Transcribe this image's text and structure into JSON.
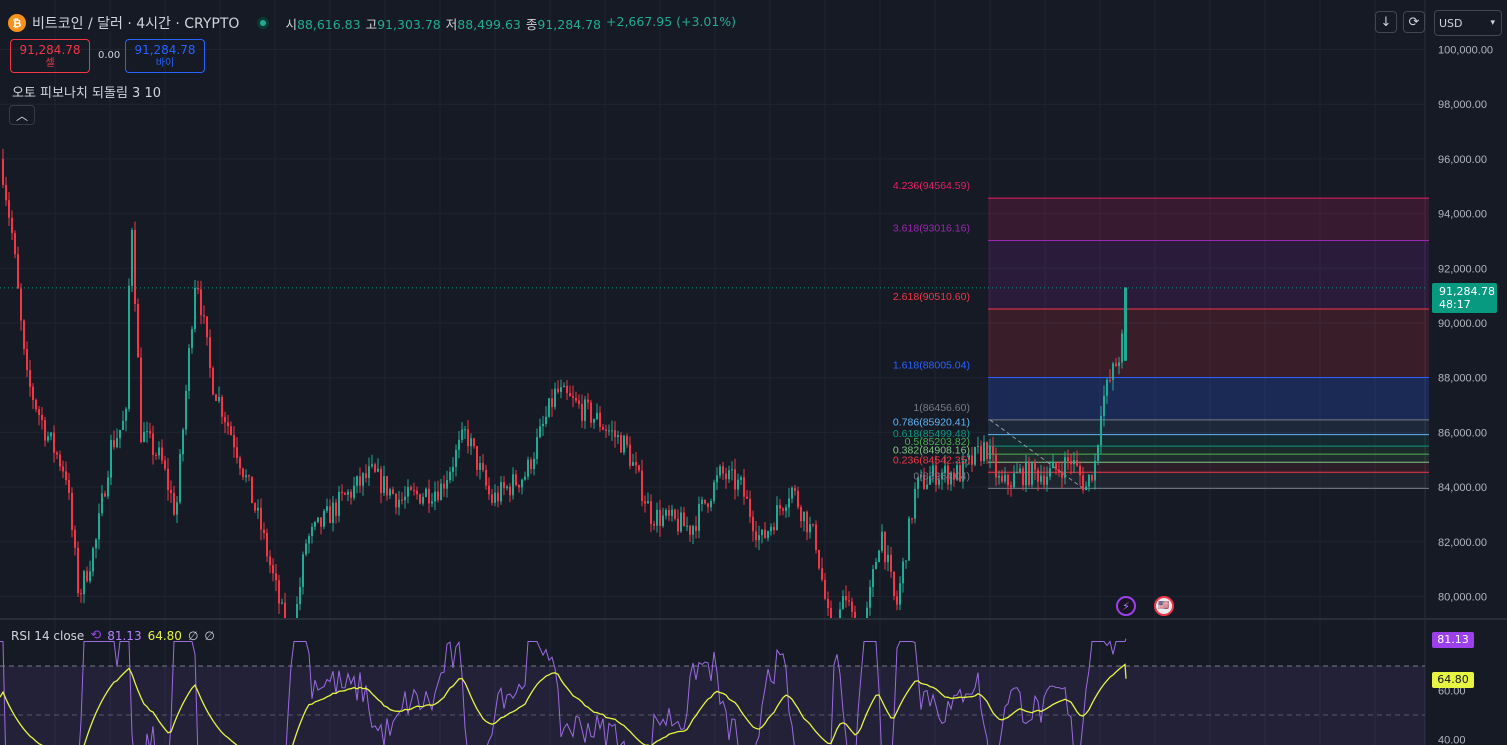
{
  "header": {
    "coin_icon": "bitcoin-icon",
    "title": "비트코인 / 달러 · 4시간 · CRYPTO",
    "open_label": "시",
    "open_value": "88,616.83",
    "high_label": "고",
    "high_value": "91,303.78",
    "low_label": "저",
    "low_value": "88,499.63",
    "close_label": "종",
    "close_value": "91,284.78",
    "change": "+2,667.95 (+3.01%)"
  },
  "trade": {
    "sell_price": "91,284.78",
    "sell_label": "셀",
    "spread": "0.00",
    "buy_price": "91,284.78",
    "buy_label": "바이"
  },
  "indicator": {
    "name": "오토 피보나치 되돌림 3 10",
    "collapse_icon": "chevron-up-icon"
  },
  "toolbar": {
    "download_icon": "arrow-down-icon",
    "refresh_icon": "refresh-icon",
    "currency": "USD"
  },
  "price_axis": {
    "ticks": [
      "100,000.00",
      "98,000.00",
      "96,000.00",
      "94,000.00",
      "92,000.00",
      "90,000.00",
      "88,000.00",
      "86,000.00",
      "84,000.00",
      "82,000.00",
      "80,000.00"
    ],
    "current_price": "91,284.78",
    "countdown": "48:17"
  },
  "fib_levels": [
    {
      "text": "4.236(94564.59)",
      "color": "#e91e63"
    },
    {
      "text": "3.618(93016.16)",
      "color": "#9c27b0"
    },
    {
      "text": "2.618(90510.60)",
      "color": "#f23645"
    },
    {
      "text": "1.618(88005.04)",
      "color": "#2962ff"
    },
    {
      "text": "1(86456.60)",
      "color": "#787b86"
    },
    {
      "text": "0.786(85920.41)",
      "color": "#64b5f6"
    },
    {
      "text": "0.618(85499.48)",
      "color": "#089981"
    },
    {
      "text": "0.5(85203.82)",
      "color": "#4caf50"
    },
    {
      "text": "0.382(84908.16)",
      "color": "#81c784"
    },
    {
      "text": "0.236(84542.35)",
      "color": "#f23645"
    },
    {
      "text": "0(83954.04)",
      "color": "#787b86"
    }
  ],
  "events": {
    "lightning_icon": "lightning-icon",
    "flag_icon": "us-flag-icon"
  },
  "rsi": {
    "label": "RSI 14 close",
    "sync_icon": "sync-icon",
    "value": "81.13",
    "ma_value": "64.80",
    "extra1": "∅",
    "extra2": "∅",
    "tag_value": "81.13",
    "tag_ma": "64.80",
    "ticks": [
      "60.00",
      "40.00"
    ]
  },
  "colors": {
    "up": "#22ab94",
    "down": "#f23645",
    "rsi_line": "#9c6be0",
    "rsi_ma": "#e7f442",
    "background": "#161a25"
  }
}
